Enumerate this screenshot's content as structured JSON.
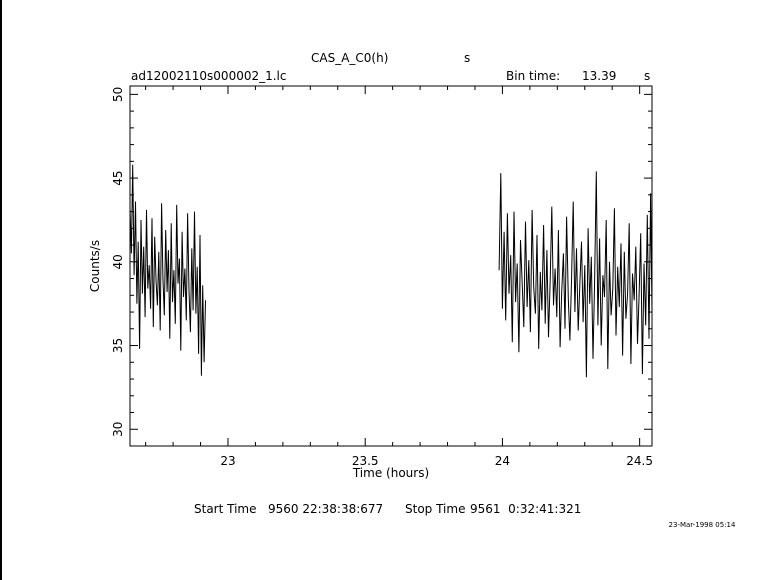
{
  "header": {
    "title": "CAS_A_C0(h)",
    "title_suffix": "s",
    "file_name": "ad12002110s000002_1.lc",
    "bin_time_label": "Bin time:",
    "bin_time_value": "13.39",
    "bin_time_unit": "s"
  },
  "footer": {
    "start_label": "Start Time",
    "start_value": "9560 22:38:38:677",
    "stop_label": "Stop Time",
    "stop_value": "9561  0:32:41:321",
    "stamp": "23-Mar-1998 05:14"
  },
  "colors": {
    "line": "#000000",
    "background": "#ffffff"
  },
  "chart_data": {
    "type": "line",
    "title": "CAS_A_C0(h)",
    "xlabel": "Time (hours)",
    "ylabel": "Counts/s",
    "xlim": [
      22.643,
      24.545
    ],
    "ylim": [
      29,
      50.5
    ],
    "grid": false,
    "x_ticks": [
      23,
      23.5,
      24,
      24.5
    ],
    "x_tick_labels": [
      "23",
      "23.5",
      "24",
      "24.5"
    ],
    "y_ticks": [
      30,
      35,
      40,
      45,
      50
    ],
    "y_tick_labels": [
      "30",
      "35",
      "40",
      "45",
      "50"
    ],
    "series": [
      {
        "x": [
          22.643,
          22.648,
          22.653,
          22.658,
          22.663,
          22.668,
          22.673,
          22.678,
          22.683,
          22.688,
          22.693,
          22.698,
          22.703,
          22.708,
          22.713,
          22.718,
          22.723,
          22.728,
          22.733,
          22.738,
          22.743,
          22.748,
          22.753,
          22.758,
          22.763,
          22.768,
          22.773,
          22.778,
          22.783,
          22.788,
          22.793,
          22.798,
          22.803,
          22.808,
          22.813,
          22.818,
          22.823,
          22.828,
          22.833,
          22.838,
          22.843,
          22.848,
          22.853,
          22.858,
          22.863,
          22.868,
          22.873,
          22.878,
          22.883,
          22.888,
          22.893,
          22.898,
          22.903,
          22.908,
          22.913,
          22.918
        ],
        "y": [
          43.2,
          40.5,
          45.8,
          39.2,
          43.6,
          37.5,
          41.2,
          34.8,
          42.5,
          38.1,
          40.9,
          36.7,
          43.1,
          38.4,
          39.8,
          37.2,
          42.6,
          36.1,
          41.5,
          38.8,
          37.4,
          40.6,
          35.9,
          43.5,
          39.1,
          36.8,
          41.9,
          38.2,
          40.7,
          35.4,
          42.3,
          37.6,
          39.5,
          36.3,
          43.4,
          38.7,
          40.2,
          34.7,
          41.8,
          37.9,
          39.6,
          36.5,
          42.9,
          38.3,
          35.8,
          40.8,
          37.1,
          43.0,
          36.9,
          39.7,
          34.5,
          41.6,
          33.2,
          38.6,
          34.0,
          37.7
        ]
      },
      {
        "x": [
          23.988,
          23.994,
          24.0,
          24.006,
          24.012,
          24.018,
          24.024,
          24.03,
          24.036,
          24.042,
          24.048,
          24.054,
          24.06,
          24.066,
          24.072,
          24.078,
          24.084,
          24.09,
          24.096,
          24.102,
          24.108,
          24.114,
          24.12,
          24.126,
          24.132,
          24.138,
          24.144,
          24.15,
          24.156,
          24.162,
          24.168,
          24.174,
          24.18,
          24.186,
          24.192,
          24.198,
          24.204,
          24.21,
          24.216,
          24.222,
          24.228,
          24.234,
          24.24,
          24.246,
          24.252,
          24.258,
          24.264,
          24.27,
          24.276,
          24.282,
          24.288,
          24.294,
          24.3,
          24.306,
          24.312,
          24.318,
          24.324,
          24.33,
          24.336,
          24.342,
          24.348,
          24.354,
          24.36,
          24.366,
          24.372,
          24.378,
          24.384,
          24.39,
          24.396,
          24.402,
          24.408,
          24.414,
          24.42,
          24.426,
          24.432,
          24.438,
          24.444,
          24.45,
          24.456,
          24.462,
          24.468,
          24.474,
          24.48,
          24.486,
          24.492,
          24.498,
          24.504,
          24.51,
          24.516,
          24.522,
          24.528,
          24.534,
          24.54,
          24.545
        ],
        "y": [
          39.5,
          45.3,
          37.2,
          41.8,
          36.5,
          42.9,
          38.1,
          40.4,
          35.2,
          43.0,
          37.6,
          39.9,
          34.6,
          41.3,
          38.7,
          36.1,
          42.4,
          37.3,
          40.1,
          35.8,
          43.1,
          38.5,
          36.9,
          41.6,
          34.8,
          39.4,
          37.1,
          42.2,
          36.3,
          40.7,
          35.5,
          38.9,
          43.3,
          37.4,
          39.6,
          36.7,
          41.9,
          34.9,
          38.2,
          40.5,
          36.0,
          42.7,
          37.8,
          35.3,
          39.1,
          43.6,
          37.0,
          40.8,
          35.9,
          38.6,
          41.2,
          36.4,
          39.8,
          33.1,
          42.0,
          37.5,
          40.3,
          34.2,
          38.8,
          45.4,
          36.2,
          41.4,
          35.0,
          39.2,
          37.9,
          42.5,
          33.6,
          40.0,
          36.8,
          38.4,
          43.2,
          35.6,
          39.7,
          37.3,
          41.1,
          34.4,
          40.6,
          36.6,
          38.1,
          42.3,
          33.9,
          39.3,
          37.7,
          40.9,
          35.1,
          38.0,
          41.7,
          33.3,
          39.9,
          36.2,
          42.8,
          35.4,
          44.1,
          36.9
        ]
      }
    ]
  }
}
